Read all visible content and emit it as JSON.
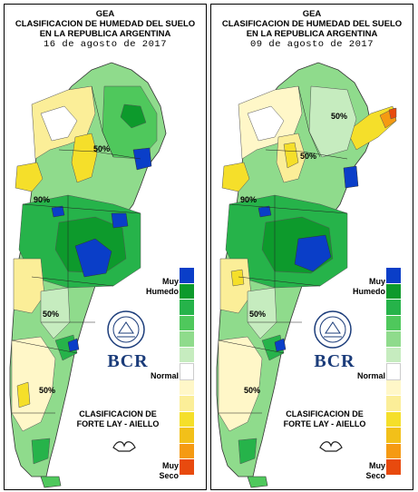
{
  "panels": [
    {
      "id": "left",
      "org": "GEA",
      "title_line1": "CLASIFICACION DE HUMEDAD DEL SUELO",
      "title_line2": "EN LA REPUBLICA ARGENTINA",
      "date": "16 de agosto de 2017",
      "contour_labels": [
        "50%",
        "90%",
        "50%",
        "50%"
      ]
    },
    {
      "id": "right",
      "org": "GEA",
      "title_line1": "CLASIFICACION DE HUMEDAD DEL SUELO",
      "title_line2": "EN LA REPUBLICA ARGENTINA",
      "date": "09 de agosto de 2017",
      "contour_labels": [
        "50%",
        "90%",
        "50%",
        "50%",
        "50%"
      ]
    }
  ],
  "legend": {
    "top_label_1": "Muy",
    "top_label_2": "Humedo",
    "mid_label": "Normal",
    "bottom_label_1": "Muy",
    "bottom_label_2": "Seco",
    "classes": [
      "#0a3ec8",
      "#0d9a2c",
      "#26b34a",
      "#4fc85c",
      "#8fdb8c",
      "#c6ecbf",
      "#ffffff",
      "#fff7c8",
      "#fbee98",
      "#f5df2a",
      "#f2c019",
      "#f59a12",
      "#e84a0e"
    ]
  },
  "classification": {
    "line1": "CLASIFICACION DE",
    "line2": "FORTE LAY - AIELLO"
  },
  "brand": {
    "name": "BCR",
    "seal_text": "BOLSA DE COMERCIO DE ROSARIO"
  }
}
